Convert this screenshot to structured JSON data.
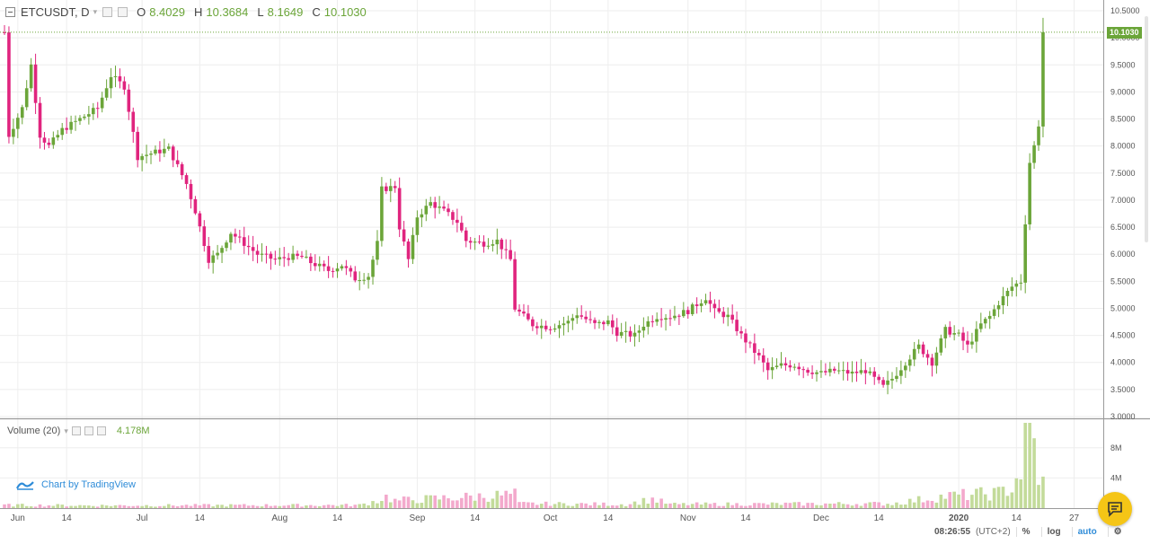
{
  "legend": {
    "symbol": "ETCUSDT, D",
    "o_label": "O",
    "o_value": "8.4029",
    "h_label": "H",
    "h_value": "10.3684",
    "l_label": "L",
    "l_value": "8.1649",
    "c_label": "C",
    "c_value": "10.1030"
  },
  "volume_legend": {
    "label": "Volume (20)",
    "value": "4.178M"
  },
  "branding": "Chart by TradingView",
  "last_price_tag": "10.1030",
  "bottom_bar": {
    "time": "08:26:55",
    "timezone": "(UTC+2)",
    "percent": "%",
    "log": "log",
    "auto": "auto"
  },
  "colors": {
    "up": "#6ba539",
    "down": "#e0247e",
    "vol_up": "#c3db9a",
    "vol_down": "#f3a9cc",
    "accent": "#2f8cd8",
    "chat": "#f5c516"
  },
  "icons": [
    "collapse-icon",
    "settings-icon",
    "close-icon",
    "tradingview-logo-icon",
    "chat-icon",
    "gear-icon"
  ],
  "chart_data": {
    "type": "candlestick",
    "yaxis_ticks": [
      "10.5000",
      "10.0000",
      "9.5000",
      "9.0000",
      "8.5000",
      "8.0000",
      "7.5000",
      "7.0000",
      "6.5000",
      "6.0000",
      "5.5000",
      "5.0000",
      "4.5000",
      "4.0000",
      "3.5000",
      "3.0000"
    ],
    "ylim": [
      3.0,
      10.5
    ],
    "volume_ticks": [
      "8M",
      "4M"
    ],
    "xaxis_labels": [
      {
        "text": "Jun",
        "day": 3
      },
      {
        "text": "14",
        "day": 14
      },
      {
        "text": "Jul",
        "day": 31
      },
      {
        "text": "14",
        "day": 44
      },
      {
        "text": "Aug",
        "day": 62
      },
      {
        "text": "14",
        "day": 75
      },
      {
        "text": "Sep",
        "day": 93
      },
      {
        "text": "14",
        "day": 106
      },
      {
        "text": "Oct",
        "day": 123
      },
      {
        "text": "14",
        "day": 136
      },
      {
        "text": "Nov",
        "day": 154
      },
      {
        "text": "14",
        "day": 167
      },
      {
        "text": "Dec",
        "day": 184
      },
      {
        "text": "14",
        "day": 197
      },
      {
        "text": "2020",
        "day": 215
      },
      {
        "text": "14",
        "day": 228
      },
      {
        "text": "27",
        "day": 241
      }
    ],
    "last_close": 10.103,
    "anchors": [
      [
        1,
        8.2
      ],
      [
        4,
        8.7
      ],
      [
        6,
        9.5
      ],
      [
        8,
        8.2
      ],
      [
        10,
        8.0
      ],
      [
        13,
        8.3
      ],
      [
        17,
        8.5
      ],
      [
        21,
        8.7
      ],
      [
        24,
        9.3
      ],
      [
        27,
        9.1
      ],
      [
        30,
        7.8
      ],
      [
        37,
        7.95
      ],
      [
        41,
        7.3
      ],
      [
        43,
        6.8
      ],
      [
        46,
        5.9
      ],
      [
        48,
        6.0
      ],
      [
        51,
        6.4
      ],
      [
        57,
        6.0
      ],
      [
        61,
        5.9
      ],
      [
        64,
        5.95
      ],
      [
        67,
        5.95
      ],
      [
        69,
        5.85
      ],
      [
        73,
        5.7
      ],
      [
        76,
        5.8
      ],
      [
        79,
        5.55
      ],
      [
        82,
        5.6
      ],
      [
        84,
        6.2
      ],
      [
        85,
        7.2
      ],
      [
        88,
        7.25
      ],
      [
        89,
        6.5
      ],
      [
        91,
        5.9
      ],
      [
        93,
        6.7
      ],
      [
        96,
        6.95
      ],
      [
        99,
        6.8
      ],
      [
        102,
        6.6
      ],
      [
        104,
        6.25
      ],
      [
        108,
        6.2
      ],
      [
        111,
        6.25
      ],
      [
        114,
        5.9
      ],
      [
        115,
        5.0
      ],
      [
        119,
        4.7
      ],
      [
        123,
        4.65
      ],
      [
        127,
        4.75
      ],
      [
        129,
        4.9
      ],
      [
        133,
        4.7
      ],
      [
        136,
        4.75
      ],
      [
        138,
        4.55
      ],
      [
        142,
        4.5
      ],
      [
        144,
        4.7
      ],
      [
        147,
        4.85
      ],
      [
        150,
        4.85
      ],
      [
        154,
        4.95
      ],
      [
        158,
        5.2
      ],
      [
        160,
        4.95
      ],
      [
        163,
        4.85
      ],
      [
        166,
        4.5
      ],
      [
        168,
        4.3
      ],
      [
        170,
        4.1
      ],
      [
        172,
        3.85
      ],
      [
        175,
        3.95
      ],
      [
        178,
        3.95
      ],
      [
        181,
        3.85
      ],
      [
        184,
        3.8
      ],
      [
        187,
        3.85
      ],
      [
        191,
        3.8
      ],
      [
        194,
        3.85
      ],
      [
        196,
        3.7
      ],
      [
        198,
        3.55
      ],
      [
        200,
        3.7
      ],
      [
        203,
        4.0
      ],
      [
        206,
        4.3
      ],
      [
        209,
        4.0
      ],
      [
        212,
        4.6
      ],
      [
        215,
        4.5
      ],
      [
        217,
        4.3
      ],
      [
        220,
        4.7
      ],
      [
        222,
        4.85
      ],
      [
        224,
        5.1
      ],
      [
        227,
        5.4
      ],
      [
        229,
        5.5
      ],
      [
        230,
        6.6
      ],
      [
        231,
        7.7
      ],
      [
        232,
        8.0
      ],
      [
        233,
        8.4
      ],
      [
        234,
        10.103
      ]
    ],
    "volume_anchors": [
      [
        0,
        0.4
      ],
      [
        20,
        0.35
      ],
      [
        80,
        0.4
      ],
      [
        84,
        1.0
      ],
      [
        86,
        1.5
      ],
      [
        88,
        1.0
      ],
      [
        115,
        1.8
      ],
      [
        116,
        0.6
      ],
      [
        140,
        0.5
      ],
      [
        146,
        1.2
      ],
      [
        150,
        0.5
      ],
      [
        200,
        0.6
      ],
      [
        212,
        1.6
      ],
      [
        224,
        2.0
      ],
      [
        227,
        2.8
      ],
      [
        229,
        5.0
      ],
      [
        230,
        8.8
      ],
      [
        231,
        9.5
      ],
      [
        232,
        8.2
      ],
      [
        233,
        4.178
      ]
    ],
    "days": 235
  }
}
